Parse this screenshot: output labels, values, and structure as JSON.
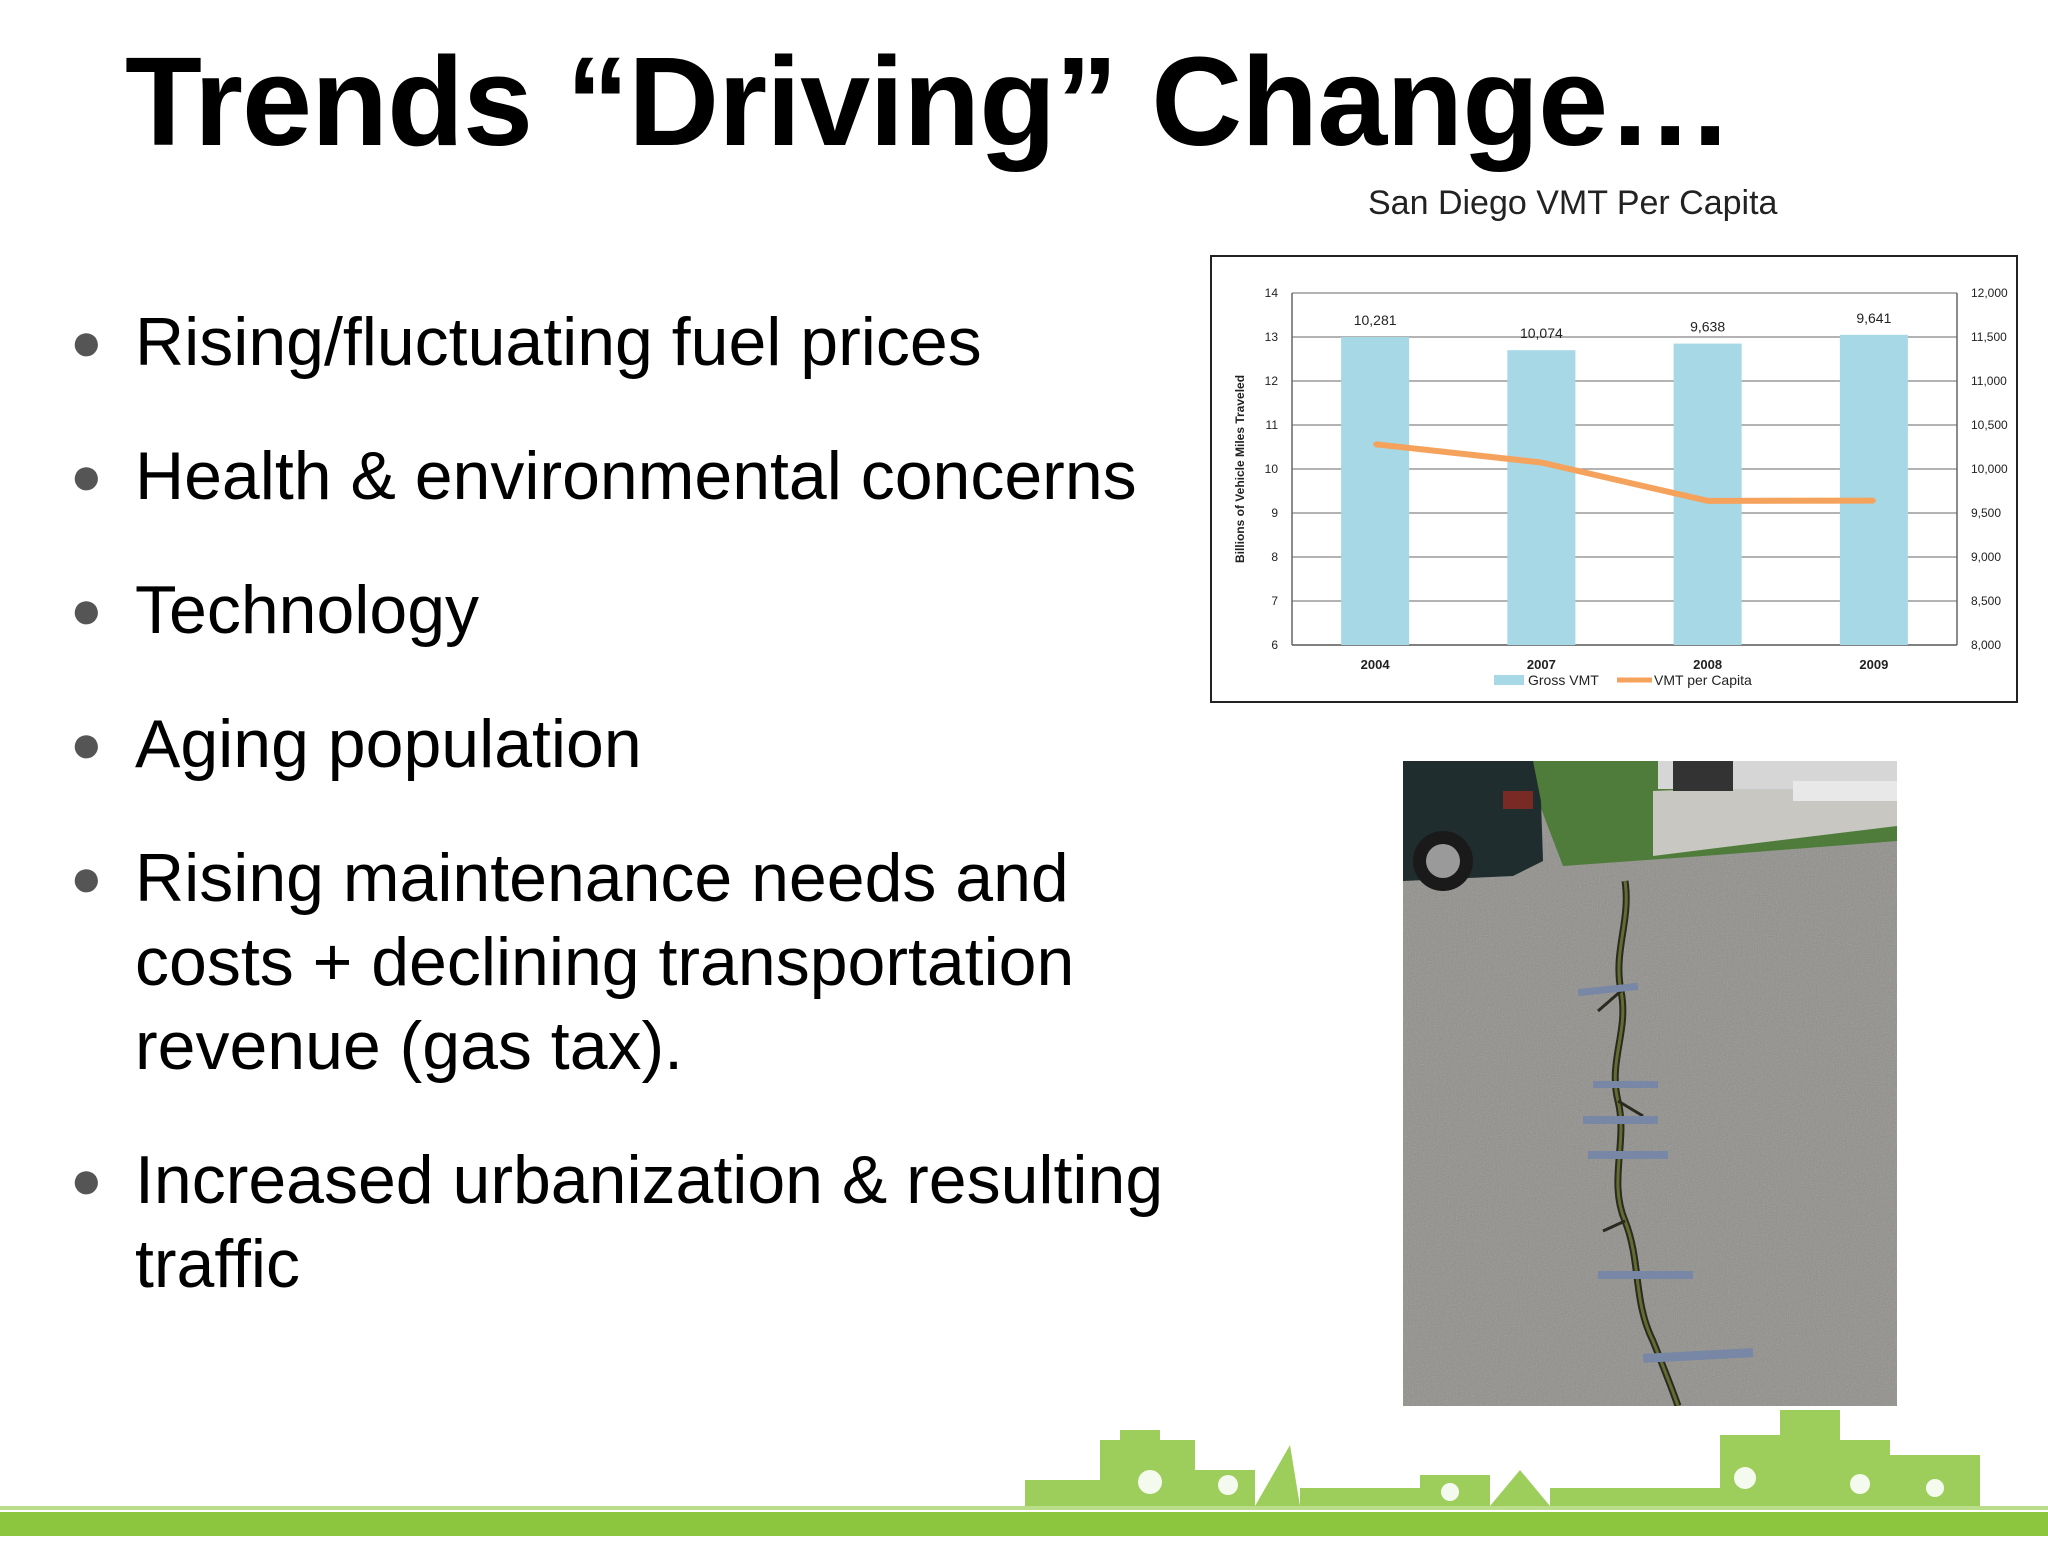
{
  "slide": {
    "title": "Trends “Driving” Change…",
    "bullets": [
      "Rising/fluctuating fuel prices",
      "Health & environmental concerns",
      "Technology",
      "Aging population",
      "Rising maintenance needs and costs + declining transportation revenue (gas tax).",
      "Increased urbanization & resulting traffic"
    ],
    "bullet_icon": "bullet-dot",
    "accent_color": "#8cc63f"
  },
  "chart_caption": "San Diego VMT Per Capita",
  "chart_data": {
    "type": "bar",
    "title": "",
    "categories": [
      "2004",
      "2007",
      "2008",
      "2009"
    ],
    "ylabel": "Billions of Vehicle Miles Traveled",
    "ylim": [
      6,
      14
    ],
    "y_ticks": [
      "6",
      "7",
      "8",
      "9",
      "10",
      "11",
      "12",
      "13",
      "14"
    ],
    "y2lim": [
      8000,
      12000
    ],
    "y2_ticks": [
      "8,000",
      "8,500",
      "9,000",
      "9,500",
      "10,000",
      "10,500",
      "11,000",
      "11,500",
      "12,000"
    ],
    "grid": true,
    "legend_position": "bottom",
    "series": [
      {
        "name": "Gross VMT",
        "type": "bar",
        "axis": "left",
        "color": "#a6d8e6",
        "values": [
          13.0,
          12.7,
          12.85,
          13.05
        ]
      },
      {
        "name": "VMT per Capita",
        "type": "line",
        "axis": "right",
        "color": "#f5a25d",
        "values": [
          10281,
          10074,
          9638,
          9641
        ],
        "labels": [
          "10,281",
          "10,074",
          "9,638",
          "9,641"
        ]
      }
    ]
  }
}
